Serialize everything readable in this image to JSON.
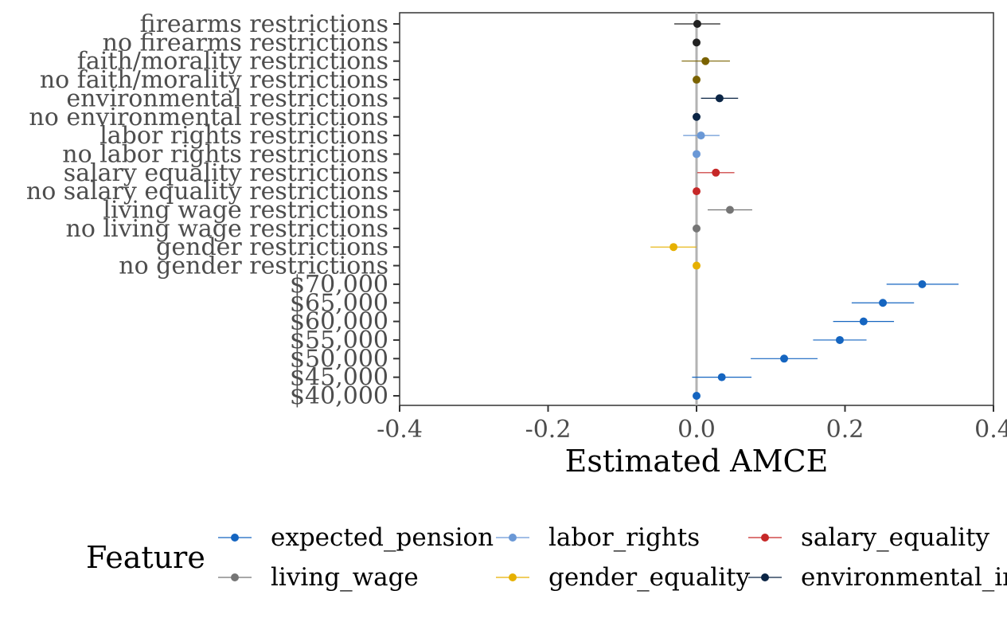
{
  "chart_data": {
    "type": "scatter",
    "subtype": "dot-with-horizontal-error-bars (coefficient plot)",
    "xlabel": "Estimated AMCE",
    "ylabel": "",
    "xlim": [
      -0.4,
      0.4
    ],
    "x_ticks": [
      "-0.4",
      "-0.2",
      "0.0",
      "0.2",
      "0.4"
    ],
    "reference_line_x": 0.0,
    "grid": false,
    "legend": {
      "title": "Feature",
      "placement": "bottom",
      "entries": [
        {
          "name": "expected_pension",
          "color": "#1565C0"
        },
        {
          "name": "living_wage",
          "color": "#757575"
        },
        {
          "name": "labor_rights",
          "color": "#6A98D6"
        },
        {
          "name": "gender_equality",
          "color": "#E6B000"
        },
        {
          "name": "salary_equality",
          "color": "#C62828"
        },
        {
          "name": "environmental_im",
          "color": "#0B2545"
        }
      ]
    },
    "points": [
      {
        "label": "firearms restrictions",
        "feature": "firearms",
        "color": "#222222",
        "estimate": 0.001,
        "lower": -0.03,
        "upper": 0.032
      },
      {
        "label": "no firearms restrictions",
        "feature": "firearms",
        "color": "#222222",
        "estimate": 0.0,
        "lower": 0.0,
        "upper": 0.0
      },
      {
        "label": "faith/morality restrictions",
        "feature": "faith_morality",
        "color": "#7A6200",
        "estimate": 0.012,
        "lower": -0.02,
        "upper": 0.045
      },
      {
        "label": "no faith/morality restrictions",
        "feature": "faith_morality",
        "color": "#7A6200",
        "estimate": 0.0,
        "lower": 0.0,
        "upper": 0.0
      },
      {
        "label": "environmental restrictions",
        "feature": "environmental_im",
        "color": "#0B2545",
        "estimate": 0.031,
        "lower": 0.006,
        "upper": 0.056
      },
      {
        "label": "no environmental restrictions",
        "feature": "environmental_im",
        "color": "#0B2545",
        "estimate": 0.0,
        "lower": 0.0,
        "upper": 0.0
      },
      {
        "label": "labor rights restrictions",
        "feature": "labor_rights",
        "color": "#6A98D6",
        "estimate": 0.006,
        "lower": -0.018,
        "upper": 0.031
      },
      {
        "label": "no labor rights restrictions",
        "feature": "labor_rights",
        "color": "#6A98D6",
        "estimate": 0.0,
        "lower": 0.0,
        "upper": 0.0
      },
      {
        "label": "salary equality restrictions",
        "feature": "salary_equality",
        "color": "#C62828",
        "estimate": 0.026,
        "lower": 0.001,
        "upper": 0.051
      },
      {
        "label": "no salary equality restrictions",
        "feature": "salary_equality",
        "color": "#C62828",
        "estimate": 0.0,
        "lower": 0.0,
        "upper": 0.0
      },
      {
        "label": "living wage restrictions",
        "feature": "living_wage",
        "color": "#757575",
        "estimate": 0.045,
        "lower": 0.015,
        "upper": 0.075
      },
      {
        "label": "no living wage restrictions",
        "feature": "living_wage",
        "color": "#757575",
        "estimate": 0.0,
        "lower": 0.0,
        "upper": 0.0
      },
      {
        "label": "gender restrictions",
        "feature": "gender_equality",
        "color": "#E6B000",
        "estimate": -0.031,
        "lower": -0.062,
        "upper": 0.0
      },
      {
        "label": "no gender restrictions",
        "feature": "gender_equality",
        "color": "#E6B000",
        "estimate": 0.0,
        "lower": 0.0,
        "upper": 0.0
      },
      {
        "label": "$70,000",
        "feature": "expected_pension",
        "color": "#1565C0",
        "estimate": 0.304,
        "lower": 0.256,
        "upper": 0.353
      },
      {
        "label": "$65,000",
        "feature": "expected_pension",
        "color": "#1565C0",
        "estimate": 0.251,
        "lower": 0.209,
        "upper": 0.293
      },
      {
        "label": "$60,000",
        "feature": "expected_pension",
        "color": "#1565C0",
        "estimate": 0.225,
        "lower": 0.184,
        "upper": 0.266
      },
      {
        "label": "$55,000",
        "feature": "expected_pension",
        "color": "#1565C0",
        "estimate": 0.193,
        "lower": 0.157,
        "upper": 0.229
      },
      {
        "label": "$50,000",
        "feature": "expected_pension",
        "color": "#1565C0",
        "estimate": 0.118,
        "lower": 0.073,
        "upper": 0.163
      },
      {
        "label": "$45,000",
        "feature": "expected_pension",
        "color": "#1565C0",
        "estimate": 0.034,
        "lower": -0.006,
        "upper": 0.074
      },
      {
        "label": "$40,000",
        "feature": "expected_pension",
        "color": "#1565C0",
        "estimate": 0.0,
        "lower": 0.0,
        "upper": 0.0
      }
    ]
  }
}
